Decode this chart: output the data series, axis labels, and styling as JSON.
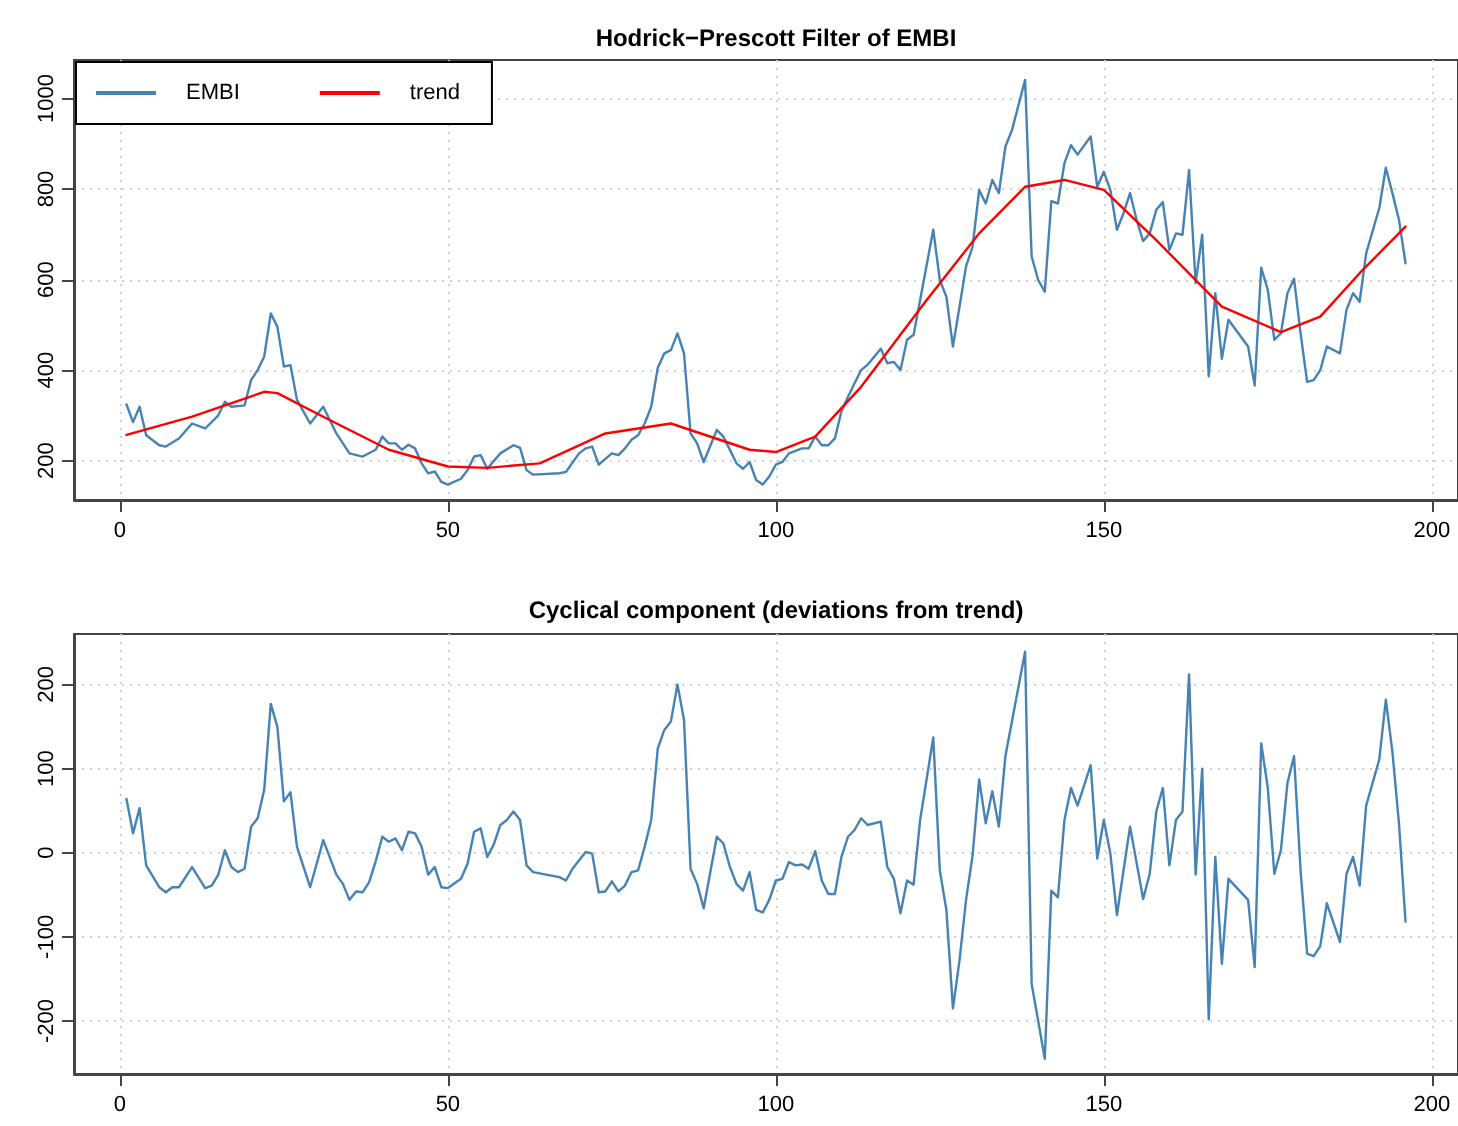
{
  "chart_data": [
    {
      "type": "line",
      "title": "Hodrick−Prescott Filter of EMBI",
      "xlim": [
        -7,
        204
      ],
      "ylim": [
        113,
        1085
      ],
      "xticks": [
        0,
        50,
        100,
        150,
        200
      ],
      "yticks": [
        200,
        400,
        600,
        800,
        1000
      ],
      "grid": true,
      "legend": "top left",
      "marker": "none",
      "line_style": "solid",
      "series": [
        {
          "name": "EMBI",
          "color": "#4682b4",
          "x": [
            1,
            2,
            3,
            4,
            6,
            7,
            9,
            11,
            13,
            15,
            16,
            17,
            19,
            20,
            21,
            22,
            23,
            24,
            25,
            26,
            27,
            29,
            31,
            33,
            35,
            37,
            39,
            40,
            41,
            42,
            43,
            44,
            45,
            46,
            47,
            48,
            49,
            50,
            52,
            53,
            54,
            55,
            56,
            58,
            60,
            61,
            62,
            63,
            67,
            68,
            70,
            71,
            72,
            73,
            75,
            76,
            77,
            78,
            79,
            80,
            81,
            82,
            83,
            84,
            85,
            86,
            87,
            88,
            89,
            91,
            92,
            94,
            95,
            96,
            97,
            98,
            99,
            100,
            101,
            102,
            104,
            105,
            106,
            107,
            108,
            109,
            110,
            111,
            113,
            114,
            116,
            117,
            118,
            119,
            120,
            121,
            122,
            124,
            125,
            126,
            127,
            128,
            129,
            130,
            131,
            132,
            133,
            134,
            135,
            136,
            138,
            139,
            140,
            141,
            142,
            143,
            144,
            145,
            146,
            148,
            149,
            150,
            151,
            152,
            153,
            154,
            155,
            156,
            157,
            158,
            159,
            160,
            161,
            162,
            163,
            164,
            165,
            166,
            167,
            168,
            169,
            172,
            173,
            174,
            175,
            176,
            177,
            178,
            179,
            180,
            181,
            182,
            183,
            184,
            186,
            187,
            188,
            189,
            190,
            192,
            193,
            194,
            195,
            196
          ],
          "values": [
            324,
            285,
            319,
            256,
            234,
            231,
            249,
            282,
            271,
            300,
            330,
            319,
            322,
            378,
            400,
            430,
            525,
            496,
            408,
            411,
            334,
            282,
            319,
            260,
            216,
            209,
            224,
            253,
            238,
            238,
            224,
            235,
            227,
            194,
            172,
            176,
            153,
            147,
            160,
            179,
            209,
            212,
            182,
            216,
            234,
            228,
            179,
            169,
            172,
            175,
            216,
            227,
            231,
            191,
            216,
            212,
            227,
            246,
            256,
            282,
            319,
            405,
            437,
            444,
            481,
            437,
            260,
            238,
            197,
            268,
            253,
            194,
            182,
            197,
            157,
            147,
            165,
            191,
            197,
            216,
            227,
            227,
            253,
            234,
            234,
            249,
            309,
            341,
            400,
            412,
            447,
            415,
            418,
            400,
            467,
            478,
            555,
            710,
            599,
            562,
            452,
            540,
            629,
            673,
            798,
            768,
            820,
            791,
            894,
            930,
            1041,
            651,
            599,
            573,
            773,
            768,
            857,
            897,
            876,
            916,
            805,
            838,
            798,
            710,
            746,
            791,
            732,
            685,
            702,
            754,
            771,
            665,
            702,
            699,
            842,
            592,
            699,
            386,
            570,
            425,
            511,
            452,
            366,
            626,
            577,
            467,
            481,
            570,
            602,
            481,
            374,
            378,
            400,
            452,
            437,
            533,
            570,
            551,
            658,
            758,
            847,
            791,
            732,
            636
          ]
        },
        {
          "name": "trend",
          "color": "#ff0000",
          "x": [
            1,
            11,
            22,
            24,
            31,
            41,
            50,
            56,
            64,
            74,
            84,
            96,
            100,
            106,
            113,
            123,
            131,
            138,
            144,
            150,
            158,
            168,
            177,
            183,
            189,
            196
          ],
          "values": [
            257,
            297,
            352,
            349,
            297,
            224,
            187,
            184,
            194,
            260,
            282,
            224,
            219,
            253,
            363,
            555,
            702,
            805,
            820,
            798,
            687,
            540,
            484,
            518,
            614,
            717
          ]
        }
      ]
    },
    {
      "type": "line",
      "title": "Cyclical component (deviations from trend)",
      "xlim": [
        -7,
        204
      ],
      "ylim": [
        -263,
        260
      ],
      "xticks": [
        0,
        50,
        100,
        150,
        200
      ],
      "yticks": [
        -200,
        -100,
        0,
        100,
        200
      ],
      "grid": true,
      "legend": false,
      "marker": "none",
      "line_style": "solid",
      "series": [
        {
          "color": "#4682b4",
          "x": [
            1,
            2,
            3,
            4,
            6,
            7,
            8,
            9,
            11,
            13,
            14,
            15,
            16,
            17,
            18,
            19,
            20,
            21,
            22,
            23,
            24,
            25,
            26,
            27,
            29,
            31,
            33,
            34,
            35,
            36,
            37,
            38,
            39,
            40,
            41,
            42,
            43,
            44,
            45,
            46,
            47,
            48,
            49,
            50,
            52,
            53,
            54,
            55,
            56,
            57,
            58,
            59,
            60,
            61,
            62,
            63,
            67,
            68,
            69,
            71,
            72,
            73,
            74,
            75,
            76,
            77,
            78,
            79,
            80,
            81,
            82,
            83,
            84,
            85,
            86,
            87,
            88,
            89,
            91,
            92,
            93,
            94,
            95,
            96,
            97,
            98,
            99,
            100,
            101,
            102,
            103,
            104,
            105,
            106,
            107,
            108,
            109,
            110,
            111,
            112,
            113,
            114,
            116,
            117,
            118,
            119,
            120,
            121,
            122,
            124,
            125,
            126,
            127,
            128,
            129,
            130,
            131,
            132,
            133,
            134,
            135,
            138,
            139,
            140,
            141,
            142,
            143,
            144,
            145,
            146,
            148,
            149,
            150,
            151,
            152,
            154,
            156,
            157,
            158,
            159,
            160,
            161,
            162,
            163,
            164,
            165,
            166,
            167,
            168,
            169,
            172,
            173,
            174,
            175,
            176,
            177,
            178,
            179,
            180,
            181,
            182,
            183,
            184,
            186,
            187,
            188,
            189,
            190,
            192,
            193,
            194,
            195,
            196
          ],
          "values": [
            64,
            23,
            53,
            -15,
            -41,
            -47,
            -41,
            -41,
            -17,
            -42,
            -39,
            -26,
            3,
            -17,
            -23,
            -19,
            31,
            41,
            75,
            177,
            150,
            61,
            72,
            7,
            -41,
            15,
            -26,
            -37,
            -56,
            -46,
            -47,
            -35,
            -10,
            19,
            13,
            17,
            3,
            25,
            23,
            7,
            -26,
            -17,
            -41,
            -42,
            -31,
            -13,
            25,
            29,
            -5,
            10,
            33,
            39,
            49,
            39,
            -15,
            -23,
            -29,
            -33,
            -19,
            1,
            -1,
            -47,
            -46,
            -34,
            -46,
            -39,
            -23,
            -21,
            7,
            39,
            124,
            146,
            156,
            200,
            158,
            -19,
            -37,
            -66,
            19,
            11,
            -17,
            -37,
            -45,
            -23,
            -68,
            -71,
            -56,
            -33,
            -31,
            -11,
            -15,
            -14,
            -19,
            2,
            -33,
            -49,
            -49,
            -5,
            19,
            27,
            41,
            33,
            37,
            -17,
            -31,
            -72,
            -33,
            -38,
            39,
            137,
            -21,
            -68,
            -185,
            -128,
            -56,
            -3,
            87,
            35,
            73,
            31,
            115,
            239,
            -156,
            -200,
            -245,
            -45,
            -53,
            39,
            77,
            56,
            104,
            -7,
            39,
            -1,
            -74,
            31,
            -55,
            -25,
            49,
            77,
            -15,
            39,
            49,
            212,
            -26,
            100,
            -198,
            -5,
            -132,
            -31,
            -56,
            -136,
            130,
            77,
            -25,
            3,
            83,
            115,
            -21,
            -120,
            -123,
            -111,
            -60,
            -106,
            -25,
            -5,
            -39,
            56,
            111,
            182,
            120,
            35,
            -82
          ]
        }
      ]
    }
  ]
}
